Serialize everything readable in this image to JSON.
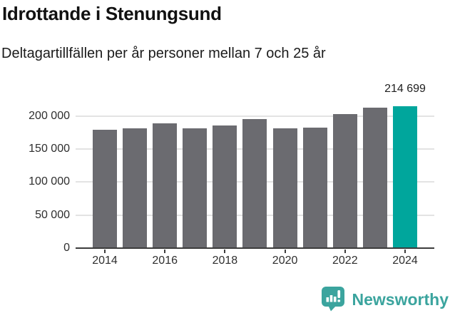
{
  "chart_data": {
    "type": "bar",
    "title": "Idrottande i Stenungsund",
    "subtitle": "Deltagartillfällen per år personer mellan 7 och 25 år",
    "categories": [
      "2014",
      "2015",
      "2016",
      "2017",
      "2018",
      "2019",
      "2020",
      "2021",
      "2022",
      "2023",
      "2024"
    ],
    "values": [
      179500,
      181000,
      189000,
      181500,
      186000,
      196000,
      182000,
      183000,
      203500,
      213000,
      214699
    ],
    "highlight_index": 10,
    "highlight_label": "214 699",
    "highlight_value": 214699,
    "xlabel": "",
    "ylabel": "",
    "ylim": [
      0,
      229000
    ],
    "ytick_values": [
      0,
      50000,
      100000,
      150000,
      200000
    ],
    "ytick_labels": [
      "0",
      "50 000",
      "100 000",
      "150 000",
      "200 000"
    ],
    "xtick_labels": [
      "2014",
      "2016",
      "2018",
      "2020",
      "2022",
      "2024"
    ],
    "grid": "horizontal",
    "legend": "none"
  },
  "colors": {
    "bar": "#6B6B70",
    "highlight": "#00A69C",
    "gridline": "#E3E3E3",
    "axis": "#3C3C3C",
    "title_text": "#111111",
    "label_text": "#2E2E2E",
    "logo": "#3BA49E"
  },
  "footer": {
    "brand": "Newsworthy",
    "icon": "bar-chart-speech-bubble-icon"
  }
}
